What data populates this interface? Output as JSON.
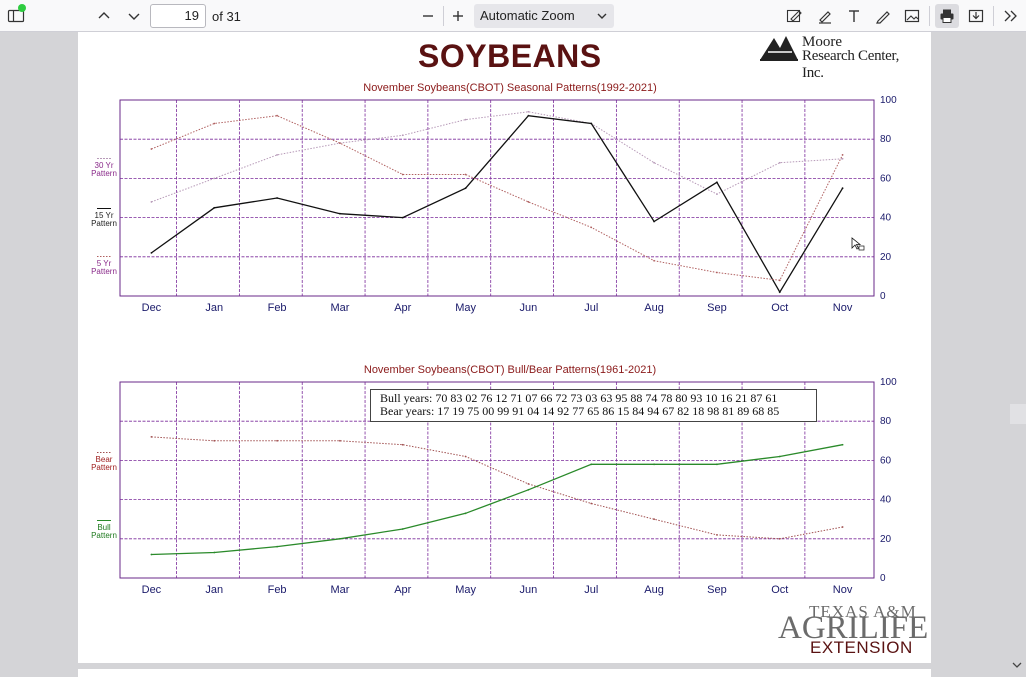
{
  "toolbar": {
    "page_number": "19",
    "page_count": "of 31",
    "zoom": "Automatic Zoom",
    "icons": [
      "sidebar-toggle-icon",
      "chevron-up-icon",
      "chevron-down-icon",
      "zoom-out-icon",
      "zoom-in-icon",
      "chevron-down-icon",
      "edit-form-icon",
      "highlight-pen-icon",
      "text-tool-icon",
      "draw-pen-icon",
      "image-icon",
      "print-icon",
      "download-icon",
      "more-tools-icon"
    ],
    "notification_color": "#2ecc40"
  },
  "document": {
    "title": "SOYBEANS",
    "logo_top": "Moore",
    "logo_bottom": "Research Center, Inc.",
    "footer_logo_1": "TEXAS A&M",
    "footer_logo_2": "AGRILIFE",
    "footer_logo_3": "EXTENSION"
  },
  "chart_data": [
    {
      "type": "line",
      "title": "November Soybeans(CBOT) Seasonal Patterns(1992-2021)",
      "categories": [
        "Dec",
        "Jan",
        "Feb",
        "Mar",
        "Apr",
        "May",
        "Jun",
        "Jul",
        "Aug",
        "Sep",
        "Oct",
        "Nov"
      ],
      "y_ticks": [
        100,
        80,
        60,
        40,
        20,
        0
      ],
      "ylim": [
        0,
        100
      ],
      "legend": [
        "30 Yr Pattern",
        "15 Yr Pattern",
        "5 Yr Pattern"
      ],
      "series": [
        {
          "name": "30 Yr Pattern",
          "color": "#b79ab8",
          "values": [
            48,
            60,
            72,
            78,
            82,
            90,
            94,
            88,
            68,
            52,
            68,
            70
          ]
        },
        {
          "name": "15 Yr Pattern",
          "color": "#111111",
          "values": [
            22,
            45,
            50,
            42,
            40,
            55,
            92,
            88,
            38,
            58,
            2,
            55
          ]
        },
        {
          "name": "5 Yr Pattern",
          "color": "#b06060",
          "values": [
            75,
            88,
            92,
            78,
            62,
            62,
            48,
            35,
            18,
            12,
            8,
            72
          ]
        }
      ]
    },
    {
      "type": "line",
      "title": "November Soybeans(CBOT) Bull/Bear Patterns(1961-2021)",
      "categories": [
        "Dec",
        "Jan",
        "Feb",
        "Mar",
        "Apr",
        "May",
        "Jun",
        "Jul",
        "Aug",
        "Sep",
        "Oct",
        "Nov"
      ],
      "y_ticks": [
        100,
        80,
        60,
        40,
        20,
        0
      ],
      "ylim": [
        0,
        100
      ],
      "legend": [
        "Bear Pattern",
        "Bull Pattern"
      ],
      "annotation_bull": "Bull years: 70 83 02 76 12 71 07 66 72 73 03 63 95 88 74 78 80 93 10 16 21 87 61",
      "annotation_bear": "Bear years: 17 19 75 00 99 91 04 14 92 77 65 86 15 84 94 67 82 18 98 81 89 68 85",
      "series": [
        {
          "name": "Bear Pattern",
          "color": "#a05050",
          "values": [
            72,
            70,
            70,
            70,
            68,
            62,
            48,
            38,
            30,
            22,
            20,
            26
          ]
        },
        {
          "name": "Bull Pattern",
          "color": "#2a8a2a",
          "values": [
            12,
            13,
            16,
            20,
            25,
            33,
            45,
            58,
            58,
            58,
            62,
            68
          ]
        }
      ]
    }
  ]
}
